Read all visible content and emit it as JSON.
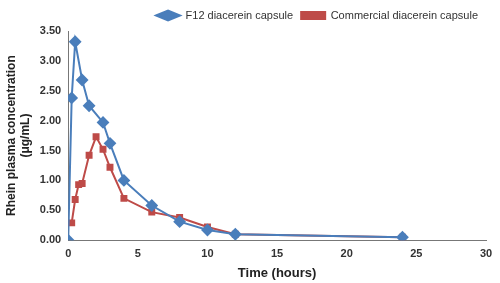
{
  "chart_data": {
    "type": "line",
    "x_label": "Time (hours)",
    "y_label": [
      "Rhein plasma concentration",
      "(μg/mL)"
    ],
    "xlim": [
      0,
      30
    ],
    "xticks": [
      0,
      5,
      10,
      15,
      20,
      25,
      30
    ],
    "ylim": [
      0,
      3.5
    ],
    "yticks": [
      {
        "value": 0,
        "label": "0.00"
      },
      {
        "value": 0.5,
        "label": "0.50"
      },
      {
        "value": 1,
        "label": "1.00"
      },
      {
        "value": 1.5,
        "label": "1.50"
      },
      {
        "value": 2,
        "label": "2.00"
      },
      {
        "value": 2.5,
        "label": "2.50"
      },
      {
        "value": 3,
        "label": "3.00"
      },
      {
        "value": 3.5,
        "label": "3.50"
      }
    ],
    "grid": false,
    "legend": "upper right",
    "series": [
      {
        "name": "F12 diacerein capsule",
        "color": "#4a7ebb",
        "marker": "diamond",
        "line_style": "solid",
        "x": [
          0,
          0.25,
          0.5,
          1,
          1.5,
          2.5,
          3,
          4,
          6,
          8,
          10,
          12,
          24
        ],
        "values": [
          0,
          2.38,
          3.32,
          2.68,
          2.25,
          1.97,
          1.62,
          1.0,
          0.58,
          0.31,
          0.17,
          0.1,
          0.05
        ]
      },
      {
        "name": "Commercial diacerein capsule",
        "color": "#be4b48",
        "marker": "square",
        "line_style": "solid",
        "x": [
          0.25,
          0.5,
          0.75,
          1,
          1.5,
          2,
          2.5,
          3,
          4,
          6,
          8,
          10,
          12,
          24
        ],
        "values": [
          0.29,
          0.68,
          0.93,
          0.95,
          1.42,
          1.73,
          1.52,
          1.22,
          0.7,
          0.47,
          0.38,
          0.22,
          0.1,
          0.05
        ]
      }
    ]
  }
}
